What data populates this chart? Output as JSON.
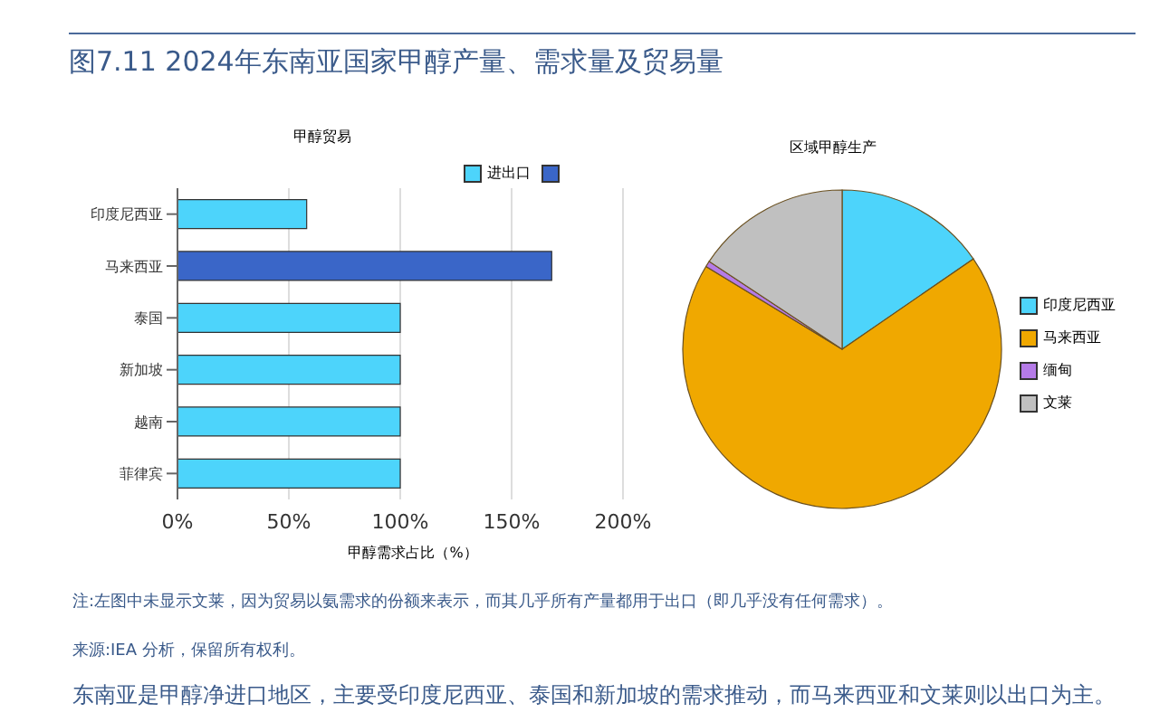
{
  "chart_data": [
    {
      "type": "bar",
      "title": "图7.11 2024年东南亚国家甲醇产量、需求量及贸易量",
      "subtitle": "甲醇贸易",
      "orientation": "horizontal",
      "stacked": true,
      "categories": [
        "印度尼西亚",
        "马来西亚",
        "泰国",
        "新加坡",
        "越南",
        "菲律宾"
      ],
      "series": [
        {
          "name": "进出口",
          "color": "#4dd4fb",
          "values": [
            58,
            null,
            100,
            100,
            100,
            100
          ]
        },
        {
          "color": "#3a66c8",
          "values": [
            null,
            168,
            null,
            null,
            null,
            null
          ]
        }
      ],
      "xlim": [
        0,
        200
      ],
      "xticks": [
        {
          "value": 0,
          "label": "0%"
        },
        {
          "value": 50,
          "label": "50%"
        },
        {
          "value": 100,
          "label": "100%"
        },
        {
          "value": 150,
          "label": "150%"
        },
        {
          "value": 200,
          "label": "200%"
        }
      ],
      "xlabel": "甲醇需求占比（%）",
      "grid": "x",
      "legend": "top right",
      "annotations": [
        "注:左图中未显示文莱，因为贸易以氨需求的份额来表示，而其几乎所有产量都用于出口（即几乎没有任何需求）。",
        "来源:IEA 分析，保留所有权利。",
        "东南亚是甲醇净进口地区，主要受印度尼西亚、泰国和新加坡的需求推动，而马来西亚和文莱则以出口为主。"
      ]
    },
    {
      "type": "pie",
      "title": "区域甲醇生产",
      "categories": [
        "印度尼西亚",
        "马来西亚",
        "缅甸",
        "文莱"
      ],
      "values": [
        15.4,
        68.3,
        0.6,
        15.7
      ],
      "colors": [
        "#4dd4fb",
        "#f0a800",
        "#b57be8",
        "#c0c0c0"
      ],
      "legend": "right"
    }
  ]
}
